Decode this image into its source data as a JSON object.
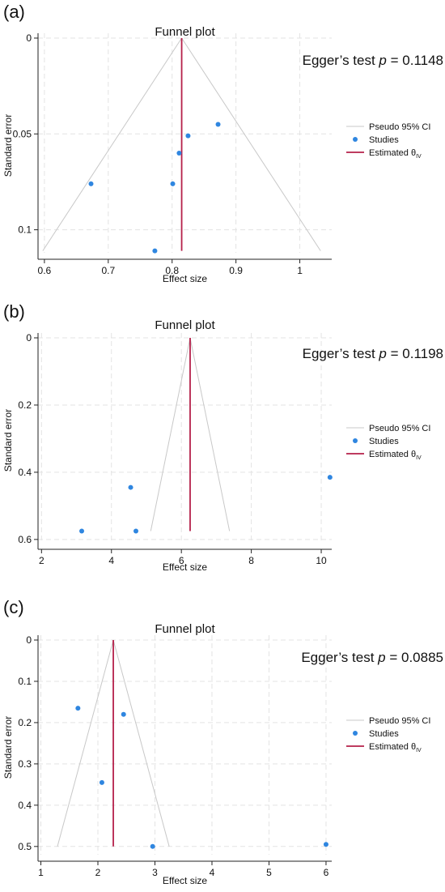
{
  "chart_data": [
    {
      "type": "scatter",
      "panel_label": "(a)",
      "title": "Funnel plot",
      "xlabel": "Effect size",
      "ylabel": "Standard error",
      "annotation": {
        "prefix": "Egger’s test ",
        "italic": "p",
        "suffix": " = 0.1148"
      },
      "xlim": [
        0.59,
        1.05
      ],
      "ylim": [
        0,
        0.112
      ],
      "y_reversed": true,
      "x_ticks": [
        0.6,
        0.7,
        0.8,
        0.9,
        1
      ],
      "x_tick_labels": [
        "0.6",
        "0.7",
        "0.8",
        "0.9",
        "1"
      ],
      "y_ticks": [
        0,
        0.05,
        0.1
      ],
      "y_tick_labels": [
        "0",
        "0.05",
        "0.1"
      ],
      "estimate": 0.815,
      "ci_max_se": 0.111,
      "studies": [
        {
          "x": 0.673,
          "y": 0.076
        },
        {
          "x": 0.773,
          "y": 0.111
        },
        {
          "x": 0.801,
          "y": 0.076
        },
        {
          "x": 0.811,
          "y": 0.06
        },
        {
          "x": 0.825,
          "y": 0.051
        },
        {
          "x": 0.872,
          "y": 0.045
        }
      ],
      "legend": {
        "ci": "Pseudo 95% CI",
        "studies": "Studies",
        "estimate": "Estimated θ",
        "estimate_sub": "IV"
      },
      "grid": true,
      "legend_position": "right"
    },
    {
      "type": "scatter",
      "panel_label": "(b)",
      "title": "Funnel plot",
      "xlabel": "Effect size",
      "ylabel": "Standard error",
      "annotation": {
        "prefix": "Egger’s test ",
        "italic": "p",
        "suffix": " = 0.1198"
      },
      "xlim": [
        1.9,
        10.3
      ],
      "ylim": [
        0,
        0.61
      ],
      "y_reversed": true,
      "x_ticks": [
        2,
        4,
        6,
        8,
        10
      ],
      "x_tick_labels": [
        "2",
        "4",
        "6",
        "8",
        "10"
      ],
      "y_ticks": [
        0,
        0.2,
        0.4,
        0.6
      ],
      "y_tick_labels": [
        "0",
        "0.2",
        "0.4",
        "0.6"
      ],
      "estimate": 6.25,
      "ci_max_se": 0.575,
      "studies": [
        {
          "x": 3.15,
          "y": 0.575
        },
        {
          "x": 4.55,
          "y": 0.445
        },
        {
          "x": 4.7,
          "y": 0.575
        },
        {
          "x": 10.25,
          "y": 0.415
        }
      ],
      "legend": {
        "ci": "Pseudo 95% CI",
        "studies": "Studies",
        "estimate": "Estimated θ",
        "estimate_sub": "IV"
      },
      "grid": true,
      "legend_position": "right"
    },
    {
      "type": "scatter",
      "panel_label": "(c)",
      "title": "Funnel plot",
      "xlabel": "Effect size",
      "ylabel": "Standard error",
      "annotation": {
        "prefix": "Egger’s test ",
        "italic": "p",
        "suffix": " = 0.0885"
      },
      "xlim": [
        0.95,
        6.1
      ],
      "ylim": [
        0,
        0.52
      ],
      "y_reversed": true,
      "x_ticks": [
        1,
        2,
        3,
        4,
        5,
        6
      ],
      "x_tick_labels": [
        "1",
        "2",
        "3",
        "4",
        "5",
        "6"
      ],
      "y_ticks": [
        0,
        0.1,
        0.2,
        0.3,
        0.4,
        0.5
      ],
      "y_tick_labels": [
        "0",
        "0.1",
        "0.2",
        "0.3",
        "0.4",
        "0.5"
      ],
      "estimate": 2.27,
      "ci_max_se": 0.5,
      "studies": [
        {
          "x": 1.65,
          "y": 0.165
        },
        {
          "x": 2.07,
          "y": 0.345
        },
        {
          "x": 2.45,
          "y": 0.18
        },
        {
          "x": 2.96,
          "y": 0.5
        },
        {
          "x": 6.0,
          "y": 0.495
        }
      ],
      "legend": {
        "ci": "Pseudo 95% CI",
        "studies": "Studies",
        "estimate": "Estimated θ",
        "estimate_sub": "IV"
      },
      "grid": true,
      "legend_position": "right"
    }
  ],
  "colors": {
    "study": "#2f86e0",
    "estimate": "#b5204a",
    "ci": "#c8c8c8",
    "grid": "#e3e3e3",
    "axis": "#222222"
  }
}
